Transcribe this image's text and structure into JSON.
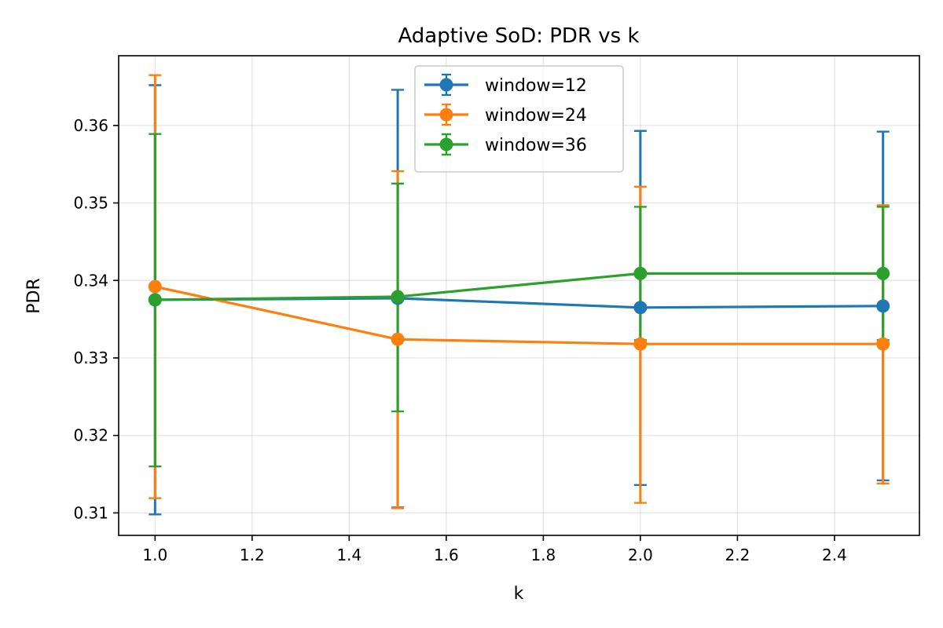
{
  "chart_data": {
    "type": "line",
    "title": "Adaptive SoD: PDR vs k",
    "xlabel": "k",
    "ylabel": "PDR",
    "xlim": [
      0.925,
      2.575
    ],
    "ylim": [
      0.3071,
      0.369
    ],
    "x_ticks": [
      1.0,
      1.2,
      1.4,
      1.6,
      1.8,
      2.0,
      2.2,
      2.4
    ],
    "x_tick_labels": [
      "1.0",
      "1.2",
      "1.4",
      "1.6",
      "1.8",
      "2.0",
      "2.2",
      "2.4"
    ],
    "y_ticks": [
      0.31,
      0.32,
      0.33,
      0.34,
      0.35,
      0.36
    ],
    "y_tick_labels": [
      "0.31",
      "0.32",
      "0.33",
      "0.34",
      "0.35",
      "0.36"
    ],
    "grid": true,
    "legend_position": "top-center",
    "x": [
      1.0,
      1.5,
      2.0,
      2.5
    ],
    "series": [
      {
        "name": "window=12",
        "color": "#1f77b4",
        "values": [
          0.3375,
          0.3377,
          0.3365,
          0.3367
        ],
        "error_low": [
          0.3098,
          0.3107,
          0.3136,
          0.3142
        ],
        "error_high": [
          0.3652,
          0.3646,
          0.3593,
          0.3592
        ]
      },
      {
        "name": "window=24",
        "color": "#ff7f0e",
        "values": [
          0.3392,
          0.3324,
          0.3318,
          0.3318
        ],
        "error_low": [
          0.3119,
          0.3106,
          0.3113,
          0.3138
        ],
        "error_high": [
          0.3665,
          0.3541,
          0.3521,
          0.3497
        ]
      },
      {
        "name": "window=36",
        "color": "#2ca02c",
        "values": [
          0.3375,
          0.3379,
          0.3409,
          0.3409
        ],
        "error_low": [
          0.316,
          0.3231,
          0.3323,
          0.3323
        ],
        "error_high": [
          0.3589,
          0.3525,
          0.3495,
          0.3495
        ]
      }
    ]
  }
}
